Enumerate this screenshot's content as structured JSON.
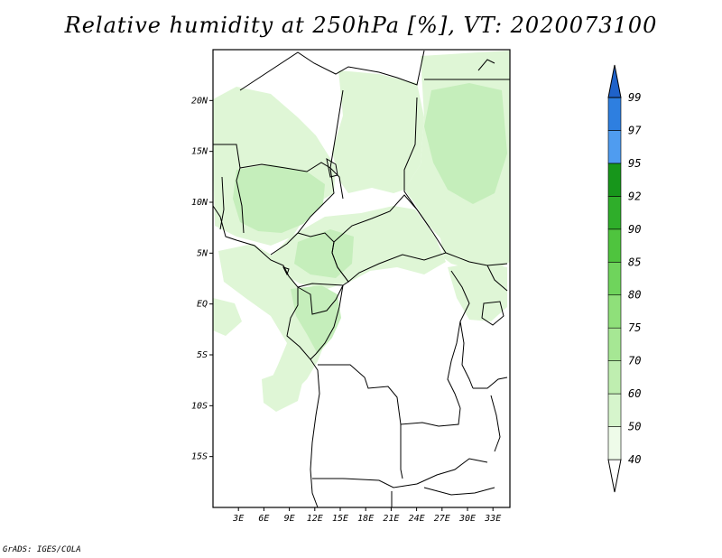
{
  "title": "Relative humidity at 250hPa [%], VT: 2020073100",
  "credit": "GrADS: IGES/COLA",
  "map": {
    "lon_range": [
      0,
      35
    ],
    "lat_range": [
      -20,
      25
    ],
    "x_ticks": [
      {
        "lon": 3,
        "label": "3E"
      },
      {
        "lon": 6,
        "label": "6E"
      },
      {
        "lon": 9,
        "label": "9E"
      },
      {
        "lon": 12,
        "label": "12E"
      },
      {
        "lon": 15,
        "label": "15E"
      },
      {
        "lon": 18,
        "label": "18E"
      },
      {
        "lon": 21,
        "label": "21E"
      },
      {
        "lon": 24,
        "label": "24E"
      },
      {
        "lon": 27,
        "label": "27E"
      },
      {
        "lon": 30,
        "label": "30E"
      },
      {
        "lon": 33,
        "label": "33E"
      }
    ],
    "y_ticks": [
      {
        "lat": 20,
        "label": "20N"
      },
      {
        "lat": 15,
        "label": "15N"
      },
      {
        "lat": 10,
        "label": "10N"
      },
      {
        "lat": 5,
        "label": "5N"
      },
      {
        "lat": 0,
        "label": "EQ"
      },
      {
        "lat": -5,
        "label": "5S"
      },
      {
        "lat": -10,
        "label": "10S"
      },
      {
        "lat": -15,
        "label": "15S"
      }
    ]
  },
  "colorbar": {
    "levels": [
      "40",
      "50",
      "60",
      "70",
      "75",
      "80",
      "85",
      "90",
      "92",
      "95",
      "97",
      "99"
    ],
    "colors": [
      "#eefbe9",
      "#d6f5cc",
      "#bfeeb0",
      "#a6e794",
      "#8fe07a",
      "#6fd45c",
      "#4fc43e",
      "#2fae2a",
      "#17961b",
      "#4f9cf0",
      "#2e7fe0",
      "#1f62c9"
    ]
  },
  "field_colors": {
    "light": "#dff6d6",
    "medium": "#c5eebb",
    "dark": "#a9e59c"
  }
}
